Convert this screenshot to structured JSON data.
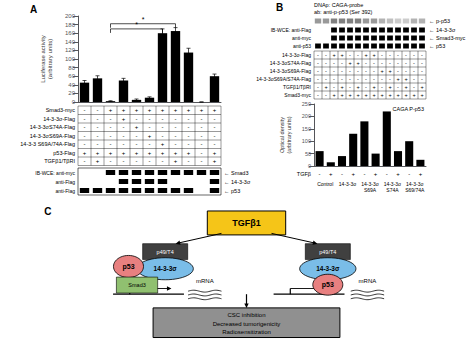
{
  "chart_data": [
    {
      "type": "bar",
      "title": "A",
      "categories": [
        null,
        null,
        null,
        null,
        null,
        null,
        null,
        null,
        null,
        null,
        null
      ],
      "values": [
        45,
        55,
        2,
        50,
        5,
        10,
        160,
        165,
        115,
        0,
        60
      ],
      "errors": [
        5,
        6,
        1,
        5,
        2,
        2,
        10,
        8,
        10,
        0,
        5
      ],
      "color": "#000000",
      "ylabel": "Luciferase activity\n(arbitrary units)",
      "ylim": [
        0,
        200
      ],
      "yticks": [
        0,
        20,
        40,
        60,
        80,
        100,
        120,
        140,
        160,
        180,
        200
      ],
      "grid": false,
      "sig_bars": [
        {
          "x1": 2,
          "x2": 6,
          "y": 170,
          "label": "*"
        },
        {
          "x1": 2,
          "x2": 7,
          "y": 182,
          "label": "*"
        }
      ],
      "table": [
        {
          "label": "Smad3-myc",
          "values": [
            "-",
            "-",
            "+",
            "+",
            "+",
            "+",
            "+",
            "+",
            "+",
            "+",
            "+"
          ]
        },
        {
          "label": "14-3-3σ-Flag",
          "values": [
            "-",
            "-",
            "-",
            "+",
            "-",
            "-",
            "-",
            "-",
            "-",
            "-",
            "-"
          ]
        },
        {
          "label": "14-3-3σS74A-Flag",
          "values": [
            "-",
            "-",
            "-",
            "-",
            "+",
            "-",
            "-",
            "-",
            "-",
            "-",
            "-"
          ]
        },
        {
          "label": "14-3-3σS69A-Flag",
          "values": [
            "-",
            "-",
            "-",
            "-",
            "-",
            "+",
            "-",
            "-",
            "-",
            "-",
            "-"
          ]
        },
        {
          "label": "14-3-3 S69A/74A-Flag",
          "values": [
            "-",
            "-",
            "-",
            "-",
            "-",
            "-",
            "+",
            "-",
            "-",
            "-",
            "-"
          ]
        },
        {
          "label": "p53-Flag",
          "values": [
            "+",
            "+",
            "+",
            "+",
            "+",
            "+",
            "+",
            "+",
            "+",
            "-",
            "+"
          ]
        },
        {
          "label": "TGFβ1/TβRI",
          "values": [
            "-",
            "+",
            "-",
            "-",
            "-",
            "-",
            "-",
            "+",
            "-",
            "-",
            "+"
          ]
        }
      ],
      "blot_rows": [
        {
          "left": "IB-WCE: anti-myc",
          "right": "← Smad3",
          "bands": [
            2,
            3,
            4,
            5,
            6,
            7,
            8,
            9,
            10
          ]
        },
        {
          "left": "anti-Flag",
          "right": "← 14-3-3σ",
          "bands": [
            3,
            4,
            5,
            6,
            10
          ]
        },
        {
          "left": "anti-Flag",
          "right": "← p53",
          "bands": [
            0,
            1,
            2,
            3,
            4,
            5,
            6,
            7,
            8,
            10
          ]
        }
      ]
    },
    {
      "type": "bar",
      "title": "B",
      "categories": [
        null,
        null,
        null,
        null,
        null,
        null,
        null,
        null,
        null,
        null
      ],
      "values": [
        60,
        15,
        40,
        130,
        180,
        50,
        220,
        60,
        100,
        25
      ],
      "color": "#000000",
      "ylabel": "Optical density\n(arbitrary units)",
      "ylim": [
        0,
        250
      ],
      "yticks": [
        0,
        50,
        100,
        150,
        200,
        250
      ],
      "grid": false,
      "subtitle": "CAGA P-p53",
      "top_labels": [
        "DNAp: CAGA-probe",
        "ab: anti-p-p53 (Ser 392)"
      ],
      "emsa": {
        "label": "← p-p53",
        "colors": [
          "#999999",
          "#999999",
          "#808080",
          "#808080",
          "#808080",
          "#808080",
          "#999999",
          "#999999",
          "#b2b2b2",
          "#bfbfbf",
          "#cccccc",
          "#cccccc",
          "#b2b2b2",
          "#b2b2b2"
        ]
      },
      "blot_rows": [
        {
          "left": "IB-WCE: anti-Flag",
          "right": "← 14-3-3σ",
          "bands": [
            2,
            3,
            4,
            5,
            6,
            7,
            8,
            9,
            10,
            11,
            12,
            13
          ]
        },
        {
          "left": "anti-myc",
          "right": "← Smad3-myc",
          "bands": [
            2,
            3,
            4,
            5,
            6,
            7,
            8,
            9,
            10,
            11,
            12,
            13
          ]
        },
        {
          "left": "anti-p53",
          "right": "← p53",
          "bands": [
            0,
            1,
            2,
            3,
            4,
            5,
            6,
            7,
            8,
            9,
            10,
            11,
            12,
            13
          ]
        }
      ],
      "table": [
        {
          "label": "14-3-3σ-Flag",
          "values": [
            "-",
            "-",
            "+",
            "+",
            "-",
            "-",
            "+",
            "+",
            "-",
            "-",
            "-",
            "-",
            "-",
            "-"
          ]
        },
        {
          "label": "14-3-3σS74A-Flag",
          "values": [
            "-",
            "-",
            "-",
            "-",
            "+",
            "+",
            "-",
            "-",
            "-",
            "-",
            "-",
            "-",
            "-",
            "-"
          ]
        },
        {
          "label": "14-3-3σS69A-Flag",
          "values": [
            "-",
            "-",
            "-",
            "-",
            "-",
            "-",
            "-",
            "-",
            "+",
            "+",
            "-",
            "-",
            "-",
            "-"
          ]
        },
        {
          "label": "14-3-3σS69A/S74A-Flag",
          "values": [
            "-",
            "-",
            "-",
            "-",
            "-",
            "-",
            "-",
            "-",
            "-",
            "-",
            "+",
            "+",
            "-",
            "-"
          ]
        },
        {
          "label": "TGFβ1/TβRI",
          "values": [
            "-",
            "+",
            "-",
            "+",
            "-",
            "+",
            "-",
            "+",
            "-",
            "+",
            "-",
            "+",
            "-",
            "+"
          ]
        },
        {
          "label": "Smad3-myc",
          "values": [
            "-",
            "-",
            "+",
            "+",
            "+",
            "+",
            "+",
            "+",
            "+",
            "+",
            "+",
            "+",
            "+",
            "+"
          ]
        }
      ],
      "tgfb_row": {
        "label": "TGFβ",
        "values": [
          "-",
          "+",
          "-",
          "+",
          "-",
          "+",
          "-",
          "+",
          "-",
          "+"
        ]
      },
      "group_labels": [
        "Control",
        "14-3-3σ",
        "14-3-3σ\nS69A",
        "14-3-3σ\nS74A",
        "14-3-3σ\nS69/74A"
      ]
    },
    {
      "type": "diagram",
      "title": "C",
      "nodes": {
        "tgfb1": {
          "label": "TGFβ1",
          "color": "#F5C518"
        },
        "p4974": {
          "label": "p49/T4",
          "color": "#404040"
        },
        "s1433": {
          "label": "14-3-3σ",
          "color": "#7ABDE8"
        },
        "p53": {
          "label": "p53",
          "color": "#E88080"
        },
        "smad3": {
          "label": "Smad3",
          "color": "#90C070"
        }
      },
      "mrna_label": "mRNA",
      "outcome": {
        "lines": [
          "CSC inhibition",
          "Decreased tumorigenicity",
          "Radiosensitization"
        ],
        "color": "#909090"
      }
    }
  ]
}
